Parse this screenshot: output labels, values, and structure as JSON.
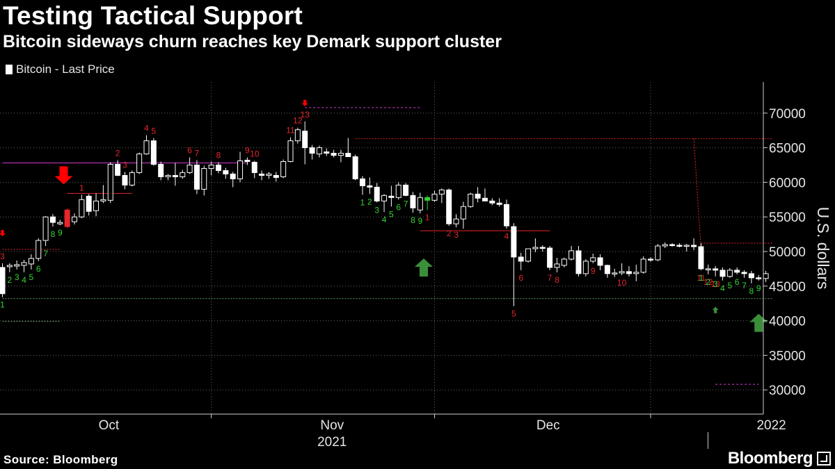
{
  "title": "Testing Tactical Support",
  "subtitle": "Bitcoin sideways churn reaches key Demark support cluster",
  "legend_label": "Bitcoin - Last Price",
  "source": "Source: Bloomberg",
  "brand": "Bloomberg",
  "colors": {
    "background": "#000000",
    "candle": "#ffffff",
    "grid": "#666666",
    "sell_count": "#e8262b",
    "buy_count": "#35d435",
    "arrow_down": "#ff0000",
    "arrow_up": "#3a8f3a",
    "resistance": "#d43cd4",
    "support": "#5f9f5f"
  },
  "chart_data": {
    "type": "candlestick",
    "title": "Testing Tactical Support",
    "subtitle": "Bitcoin sideways churn reaches key Demark support cluster",
    "ylabel": "U.S. dollars",
    "xlabel": "",
    "ylim": [
      26500,
      74500
    ],
    "yticks": [
      30000,
      35000,
      40000,
      45000,
      50000,
      55000,
      60000,
      65000,
      70000
    ],
    "x_start_day": 0,
    "x_end_day": 107,
    "x_tick_labels": [
      {
        "day": 14,
        "label": "Oct"
      },
      {
        "day": 45,
        "label": "Nov"
      },
      {
        "day": 75,
        "label": "Dec"
      },
      {
        "day": 106,
        "label": "2022"
      }
    ],
    "year_label": {
      "day": 45,
      "label": "2021"
    },
    "month_gridlines_day": [
      29,
      60,
      90
    ],
    "grid": true,
    "legend_position": "top-left",
    "candles": [
      {
        "o": 47700,
        "h": 48300,
        "l": 43400,
        "c": 43900
      },
      {
        "o": 47800,
        "h": 48300,
        "l": 47000,
        "c": 48000
      },
      {
        "o": 47900,
        "h": 48700,
        "l": 47400,
        "c": 48100
      },
      {
        "o": 48000,
        "h": 48800,
        "l": 47000,
        "c": 48400
      },
      {
        "o": 48200,
        "h": 49600,
        "l": 47400,
        "c": 49000
      },
      {
        "o": 49000,
        "h": 51900,
        "l": 48600,
        "c": 51600
      },
      {
        "o": 51600,
        "h": 55100,
        "l": 50800,
        "c": 55000
      },
      {
        "o": 55000,
        "h": 55400,
        "l": 53600,
        "c": 54200
      },
      {
        "o": 54000,
        "h": 54600,
        "l": 53800,
        "c": 54200
      },
      {
        "o": 53600,
        "h": 56200,
        "l": 53400,
        "c": 56000
      },
      {
        "o": 54300,
        "h": 55500,
        "l": 53900,
        "c": 55000
      },
      {
        "o": 55000,
        "h": 58200,
        "l": 54800,
        "c": 57500
      },
      {
        "o": 58000,
        "h": 58300,
        "l": 55200,
        "c": 55800
      },
      {
        "o": 55900,
        "h": 58400,
        "l": 55100,
        "c": 57300
      },
      {
        "o": 57300,
        "h": 59600,
        "l": 57000,
        "c": 57500
      },
      {
        "o": 57400,
        "h": 62900,
        "l": 57000,
        "c": 62600
      },
      {
        "o": 62600,
        "h": 63200,
        "l": 60900,
        "c": 61000
      },
      {
        "o": 61000,
        "h": 61500,
        "l": 59000,
        "c": 59600
      },
      {
        "o": 59600,
        "h": 61700,
        "l": 59400,
        "c": 61400
      },
      {
        "o": 61400,
        "h": 64300,
        "l": 61200,
        "c": 64100
      },
      {
        "o": 64100,
        "h": 66800,
        "l": 64000,
        "c": 66000
      },
      {
        "o": 66000,
        "h": 66400,
        "l": 62400,
        "c": 62600
      },
      {
        "o": 62600,
        "h": 63000,
        "l": 60300,
        "c": 60800
      },
      {
        "o": 60800,
        "h": 61200,
        "l": 60300,
        "c": 61000
      },
      {
        "o": 61000,
        "h": 62800,
        "l": 59500,
        "c": 60800
      },
      {
        "o": 60800,
        "h": 61800,
        "l": 60500,
        "c": 61400
      },
      {
        "o": 61400,
        "h": 63600,
        "l": 61200,
        "c": 62500
      },
      {
        "o": 62500,
        "h": 63200,
        "l": 58300,
        "c": 59000
      },
      {
        "o": 59000,
        "h": 62400,
        "l": 58100,
        "c": 62000
      },
      {
        "o": 62000,
        "h": 63000,
        "l": 61000,
        "c": 62500
      },
      {
        "o": 62500,
        "h": 62900,
        "l": 61300,
        "c": 61700
      },
      {
        "o": 61700,
        "h": 62100,
        "l": 60500,
        "c": 61200
      },
      {
        "o": 61200,
        "h": 61500,
        "l": 59300,
        "c": 60500
      },
      {
        "o": 60500,
        "h": 64400,
        "l": 60000,
        "c": 63100
      },
      {
        "o": 63200,
        "h": 63600,
        "l": 62500,
        "c": 63000
      },
      {
        "o": 62900,
        "h": 63100,
        "l": 60600,
        "c": 61400
      },
      {
        "o": 61200,
        "h": 61700,
        "l": 60300,
        "c": 61000
      },
      {
        "o": 61000,
        "h": 61500,
        "l": 60500,
        "c": 61200
      },
      {
        "o": 61000,
        "h": 61500,
        "l": 60100,
        "c": 60700
      },
      {
        "o": 60800,
        "h": 63300,
        "l": 60600,
        "c": 63000
      },
      {
        "o": 63000,
        "h": 66500,
        "l": 62900,
        "c": 66000
      },
      {
        "o": 66000,
        "h": 67900,
        "l": 65600,
        "c": 67600
      },
      {
        "o": 67400,
        "h": 68800,
        "l": 62600,
        "c": 65000
      },
      {
        "o": 65000,
        "h": 65400,
        "l": 63300,
        "c": 64200
      },
      {
        "o": 64100,
        "h": 65300,
        "l": 63600,
        "c": 65000
      },
      {
        "o": 64400,
        "h": 64900,
        "l": 63800,
        "c": 64200
      },
      {
        "o": 64200,
        "h": 64700,
        "l": 63600,
        "c": 63900
      },
      {
        "o": 63900,
        "h": 64700,
        "l": 62900,
        "c": 64200
      },
      {
        "o": 64200,
        "h": 66400,
        "l": 63800,
        "c": 63700
      },
      {
        "o": 63700,
        "h": 64000,
        "l": 60300,
        "c": 60500
      },
      {
        "o": 60500,
        "h": 60900,
        "l": 58200,
        "c": 59500
      },
      {
        "o": 59500,
        "h": 60700,
        "l": 58300,
        "c": 59300
      },
      {
        "o": 59300,
        "h": 59900,
        "l": 57100,
        "c": 57300
      },
      {
        "o": 57300,
        "h": 58300,
        "l": 55700,
        "c": 58100
      },
      {
        "o": 58000,
        "h": 59500,
        "l": 56500,
        "c": 57800
      },
      {
        "o": 57800,
        "h": 60000,
        "l": 57500,
        "c": 59600
      },
      {
        "o": 59600,
        "h": 59900,
        "l": 58000,
        "c": 58100
      },
      {
        "o": 58100,
        "h": 58600,
        "l": 55600,
        "c": 56300
      },
      {
        "o": 56000,
        "h": 58500,
        "l": 55500,
        "c": 57800
      },
      {
        "o": 57800,
        "h": 58100,
        "l": 56000,
        "c": 57400
      },
      {
        "o": 57400,
        "h": 58800,
        "l": 57200,
        "c": 58300
      },
      {
        "o": 58300,
        "h": 59100,
        "l": 57000,
        "c": 58900
      },
      {
        "o": 58900,
        "h": 59100,
        "l": 53700,
        "c": 54000
      },
      {
        "o": 54000,
        "h": 55400,
        "l": 53500,
        "c": 54700
      },
      {
        "o": 54700,
        "h": 57200,
        "l": 53300,
        "c": 56500
      },
      {
        "o": 56500,
        "h": 58500,
        "l": 56300,
        "c": 58300
      },
      {
        "o": 58300,
        "h": 59300,
        "l": 57100,
        "c": 57700
      },
      {
        "o": 57700,
        "h": 59100,
        "l": 57300,
        "c": 57300
      },
      {
        "o": 57300,
        "h": 57700,
        "l": 56700,
        "c": 57000
      },
      {
        "o": 57000,
        "h": 57700,
        "l": 56500,
        "c": 56800
      },
      {
        "o": 56800,
        "h": 57500,
        "l": 53300,
        "c": 53700
      },
      {
        "o": 53600,
        "h": 54100,
        "l": 42100,
        "c": 49200
      },
      {
        "o": 49200,
        "h": 49800,
        "l": 47300,
        "c": 48600
      },
      {
        "o": 48600,
        "h": 50400,
        "l": 48400,
        "c": 50400
      },
      {
        "o": 50400,
        "h": 51900,
        "l": 49900,
        "c": 50600
      },
      {
        "o": 50600,
        "h": 50900,
        "l": 50000,
        "c": 50500
      },
      {
        "o": 50500,
        "h": 50800,
        "l": 47300,
        "c": 47700
      },
      {
        "o": 47700,
        "h": 49100,
        "l": 47000,
        "c": 48200
      },
      {
        "o": 48000,
        "h": 49100,
        "l": 47700,
        "c": 48900
      },
      {
        "o": 48900,
        "h": 50800,
        "l": 48700,
        "c": 50100
      },
      {
        "o": 50100,
        "h": 50800,
        "l": 46400,
        "c": 46800
      },
      {
        "o": 46800,
        "h": 48900,
        "l": 46400,
        "c": 48600
      },
      {
        "o": 48600,
        "h": 49700,
        "l": 48300,
        "c": 49100
      },
      {
        "o": 49100,
        "h": 49600,
        "l": 47300,
        "c": 48000
      },
      {
        "o": 48000,
        "h": 48100,
        "l": 46200,
        "c": 46800
      },
      {
        "o": 46800,
        "h": 47500,
        "l": 46300,
        "c": 46900
      },
      {
        "o": 46900,
        "h": 48300,
        "l": 46600,
        "c": 47100
      },
      {
        "o": 47100,
        "h": 47900,
        "l": 46400,
        "c": 46800
      },
      {
        "o": 46800,
        "h": 48100,
        "l": 45700,
        "c": 47000
      },
      {
        "o": 47000,
        "h": 49300,
        "l": 46800,
        "c": 48900
      },
      {
        "o": 48900,
        "h": 49200,
        "l": 48500,
        "c": 48800
      },
      {
        "o": 48800,
        "h": 51100,
        "l": 48600,
        "c": 50800
      },
      {
        "o": 50800,
        "h": 51300,
        "l": 50500,
        "c": 51000
      },
      {
        "o": 51000,
        "h": 51200,
        "l": 50700,
        "c": 50900
      },
      {
        "o": 50900,
        "h": 51200,
        "l": 50600,
        "c": 50800
      },
      {
        "o": 50800,
        "h": 51100,
        "l": 50000,
        "c": 50900
      },
      {
        "o": 50900,
        "h": 51900,
        "l": 50200,
        "c": 50700
      },
      {
        "o": 50700,
        "h": 51200,
        "l": 47300,
        "c": 47500
      },
      {
        "o": 47500,
        "h": 48100,
        "l": 46700,
        "c": 47500
      },
      {
        "o": 47500,
        "h": 47900,
        "l": 46400,
        "c": 47300
      },
      {
        "o": 47300,
        "h": 47700,
        "l": 45800,
        "c": 46400
      },
      {
        "o": 46400,
        "h": 47600,
        "l": 46200,
        "c": 47300
      },
      {
        "o": 47300,
        "h": 47700,
        "l": 46700,
        "c": 47000
      },
      {
        "o": 47000,
        "h": 47300,
        "l": 46200,
        "c": 46800
      },
      {
        "o": 46800,
        "h": 47200,
        "l": 45400,
        "c": 46200
      },
      {
        "o": 46200,
        "h": 46600,
        "l": 45800,
        "c": 46100
      },
      {
        "o": 46100,
        "h": 47200,
        "l": 45600,
        "c": 46800
      }
    ],
    "highlighted_candles": [
      {
        "day": 9,
        "color": "#e8262b"
      },
      {
        "day": 59,
        "color": "#35d435"
      },
      {
        "day": 107,
        "color": "#35d435"
      }
    ],
    "sell_setup_counts": [
      {
        "day": 0,
        "label": "3"
      },
      {
        "day": 11,
        "label": "1"
      },
      {
        "day": 16,
        "label": "2"
      },
      {
        "day": 17,
        "label": "3"
      },
      {
        "day": 20,
        "label": "4"
      },
      {
        "day": 21,
        "label": "5"
      },
      {
        "day": 26,
        "label": "6"
      },
      {
        "day": 27,
        "label": "7"
      },
      {
        "day": 30,
        "label": "8"
      },
      {
        "day": 34,
        "label": "9"
      },
      {
        "day": 35,
        "label": "10"
      },
      {
        "day": 40,
        "label": "11"
      },
      {
        "day": 41,
        "label": "12"
      },
      {
        "day": 42,
        "label": "13"
      }
    ],
    "sell_low_counts": [
      {
        "day": 59,
        "label": "1"
      },
      {
        "day": 62,
        "label": "2"
      },
      {
        "day": 63,
        "label": "3"
      },
      {
        "day": 70,
        "label": "4"
      },
      {
        "day": 71,
        "label": "5"
      },
      {
        "day": 72,
        "label": "6"
      },
      {
        "day": 76,
        "label": "7"
      },
      {
        "day": 77,
        "label": "8"
      },
      {
        "day": 82,
        "label": "9"
      },
      {
        "day": 86,
        "label": "10"
      },
      {
        "day": 97,
        "label": "11"
      },
      {
        "day": 98,
        "label": "12"
      },
      {
        "day": 99,
        "label": "13"
      }
    ],
    "buy_setup_counts": [
      {
        "day": 0,
        "label": "1"
      },
      {
        "day": 1,
        "label": "2"
      },
      {
        "day": 2,
        "label": "3"
      },
      {
        "day": 3,
        "label": "4"
      },
      {
        "day": 4,
        "label": "5"
      },
      {
        "day": 5,
        "label": "6"
      },
      {
        "day": 6,
        "label": "7"
      },
      {
        "day": 7,
        "label": "8"
      },
      {
        "day": 8,
        "label": "9"
      },
      {
        "day": 50,
        "label": "1"
      },
      {
        "day": 51,
        "label": "2"
      },
      {
        "day": 52,
        "label": "3"
      },
      {
        "day": 53,
        "label": "4"
      },
      {
        "day": 54,
        "label": "5"
      },
      {
        "day": 55,
        "label": "6"
      },
      {
        "day": 56,
        "label": "7"
      },
      {
        "day": 57,
        "label": "8"
      },
      {
        "day": 58,
        "label": "9"
      },
      {
        "day": 97,
        "label": "1"
      },
      {
        "day": 98,
        "label": "2"
      },
      {
        "day": 99,
        "label": "3"
      },
      {
        "day": 100,
        "label": "4"
      },
      {
        "day": 101,
        "label": "5"
      },
      {
        "day": 102,
        "label": "6"
      },
      {
        "day": 103,
        "label": "7"
      },
      {
        "day": 104,
        "label": "8"
      },
      {
        "day": 105,
        "label": "9"
      }
    ],
    "arrows": [
      {
        "day": 8.5,
        "price": 59700,
        "direction": "down",
        "size": "large"
      },
      {
        "day": 58.5,
        "price": 49000,
        "direction": "up",
        "size": "large"
      },
      {
        "day": 105,
        "price": 41000,
        "direction": "up",
        "size": "large"
      },
      {
        "day": 99,
        "price": 42000,
        "direction": "up",
        "size": "small"
      },
      {
        "day": 42,
        "price": 71000,
        "direction": "down",
        "size": "small"
      },
      {
        "day": 0,
        "price": 52200,
        "direction": "down",
        "size": "small"
      }
    ],
    "lines": [
      {
        "x1": 0,
        "x2": 34,
        "y": 62800,
        "color": "#d43cd4",
        "dash": ""
      },
      {
        "x1": 42,
        "x2": 58,
        "y": 70800,
        "color": "#d43cd4",
        "dash": "3,3"
      },
      {
        "x1": 9,
        "x2": 18,
        "y": 58400,
        "color": "#e8262b",
        "dash": ""
      },
      {
        "x1": 0,
        "x2": 8,
        "y": 50300,
        "color": "#e8262b",
        "dash": "2,2"
      },
      {
        "x1": 49,
        "x2": 107,
        "y": 66300,
        "color": "#e8262b",
        "dash": "2,2"
      },
      {
        "x1": 58,
        "x2": 76,
        "y": 53000,
        "color": "#e8262b",
        "dash": ""
      },
      {
        "x1": 97,
        "x2": 107,
        "y": 51200,
        "color": "#e8262b",
        "dash": "2,2"
      },
      {
        "x1": 0,
        "x2": 107,
        "y": 43200,
        "color": "#5f9f5f",
        "dash": "2,2"
      },
      {
        "x1": 0,
        "x2": 8,
        "y": 39900,
        "color": "#5f9f5f",
        "dash": "2,2"
      },
      {
        "x1": 99,
        "x2": 105,
        "y": 30800,
        "color": "#d43cd4",
        "dash": "3,3"
      }
    ],
    "slanted_lines": [
      {
        "x1": 96,
        "y1": 66300,
        "x2": 97,
        "y2": 50300,
        "color": "#e8262b",
        "dash": "2,2"
      }
    ]
  }
}
